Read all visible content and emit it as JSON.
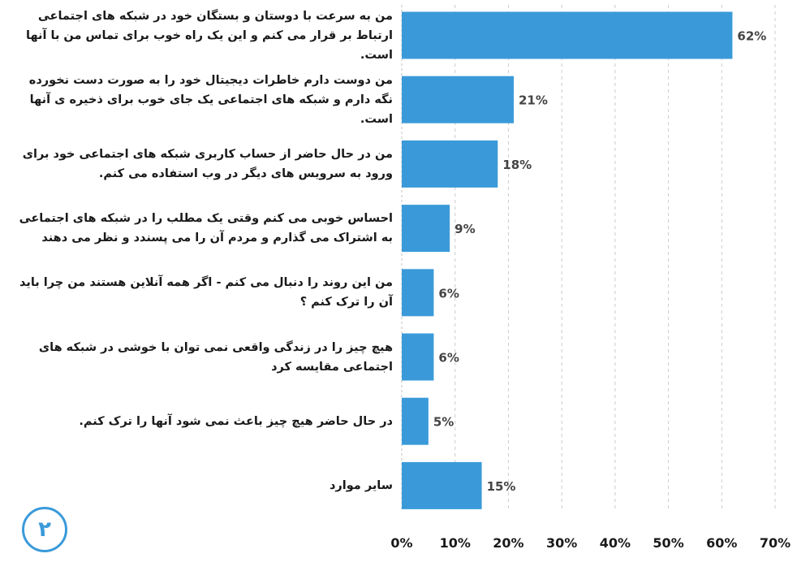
{
  "chart_data": {
    "type": "bar",
    "orientation": "horizontal",
    "categories": [
      "من به سرعت با دوستان و بستگان خود در شبکه های اجتماعی ارتباط بر قرار می کنم و این یک راه خوب برای تماس من با آنها است.",
      "من دوست دارم خاطرات دیجیتال خود را به صورت دست نخورده نگه دارم و شبکه های اجتماعی یک جای خوب برای ذخیره ی آنها است.",
      "من در حال حاضر از حساب کاربری شبکه های اجتماعی خود برای ورود به سرویس های دیگر در وب استفاده می کنم.",
      "احساس خوبی می کنم وقتی یک مطلب را در شبکه های اجتماعی به اشتراک می گذارم و مردم آن را می پسندد و نظر می دهند",
      "من این روند را دنبال می کنم - اگر همه آنلاین هستند من چرا باید آن را ترک کنم ؟",
      "هیچ چیز را در زندگی واقعی نمی توان با خوشی در شبکه های اجتماعی مقایسه کرد",
      "در حال حاضر هیچ چیز باعث نمی شود آنها را ترک کنم.",
      "سایر موارد"
    ],
    "values": [
      62,
      21,
      18,
      9,
      6,
      6,
      5,
      15
    ],
    "value_labels": [
      "62%",
      "21%",
      "18%",
      "9%",
      "6%",
      "6%",
      "5%",
      "15%"
    ],
    "xlim": [
      0,
      70
    ],
    "xticks": [
      "0%",
      "10%",
      "20%",
      "30%",
      "40%",
      "50%",
      "60%",
      "70%"
    ],
    "grid": "vertical dashed",
    "colors": {
      "bar": "#3a9ad9",
      "grid": "#cccccc",
      "text": "#1a1a1a",
      "value": "#444444"
    }
  },
  "badge": {
    "text": "۲",
    "color": "#3a9ad9"
  }
}
